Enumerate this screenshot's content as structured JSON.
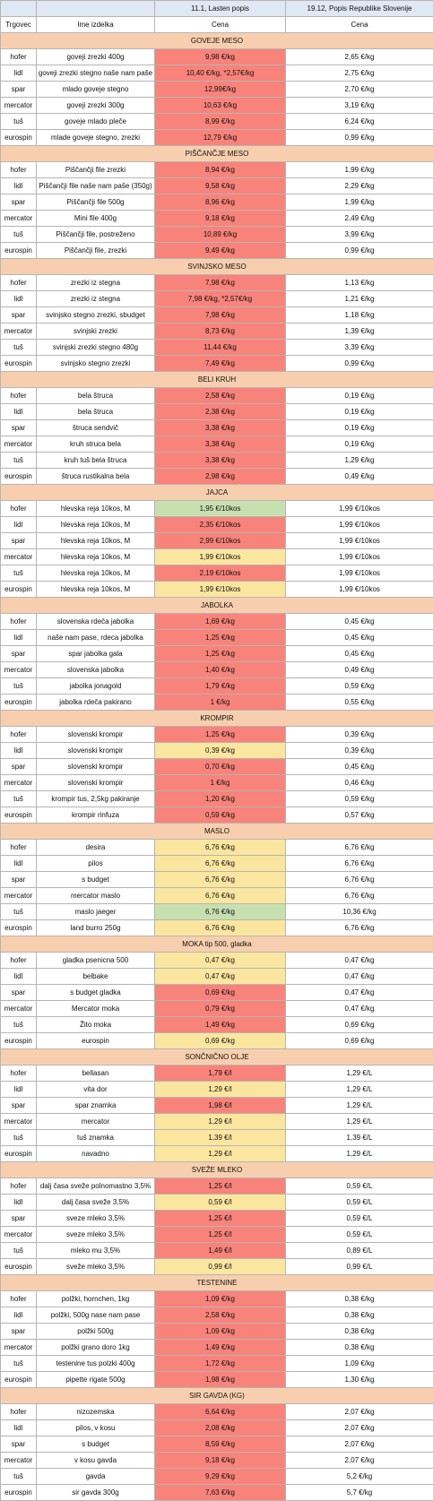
{
  "header": {
    "col3_title": "11.1, Lasten popis",
    "col4_title": "19.12, Popis Republike Slovenije",
    "col1_label": "Trgovec",
    "col2_label": "Ime izdelka",
    "col3_label": "Cena",
    "col4_label": "Cena"
  },
  "colors": {
    "red": "#f8837a",
    "yellow": "#fbe6a0",
    "green": "#c7e0b0",
    "section": "#f8cfae",
    "header": "#dfe8f3"
  },
  "sections": [
    {
      "title": "GOVEJE MESO",
      "rows": [
        {
          "store": "hofer",
          "product": "goveji zrezki 400g",
          "price_jan": "9,98 €/kg",
          "price_dec": "2,65 €/kg",
          "color": "red"
        },
        {
          "store": "lidl",
          "product": "goveji zrezki stegno naše nam paše",
          "price_jan": "10,40 €/kg, *2,57€/kg",
          "price_dec": "2,75 €/kg",
          "color": "red"
        },
        {
          "store": "spar",
          "product": "mlado goveje stegno",
          "price_jan": "12,99€/kg",
          "price_dec": "2,70 €/kg",
          "color": "red"
        },
        {
          "store": "mercator",
          "product": "goveji zrezki 300g",
          "price_jan": "10,63 €/kg",
          "price_dec": "3,19 €/kg",
          "color": "red"
        },
        {
          "store": "tuš",
          "product": "goveje mlado pleče",
          "price_jan": "8,99 €/kg",
          "price_dec": "6,24 €/kg",
          "color": "red"
        },
        {
          "store": "eurospin",
          "product": "mlade goveje stegno, zrezki",
          "price_jan": "12,79 €/kg",
          "price_dec": "0,99 €/kg",
          "color": "red"
        }
      ]
    },
    {
      "title": "PIŠČANČJE MESO",
      "rows": [
        {
          "store": "hofer",
          "product": "Piščančji file zrezki",
          "price_jan": "8,94 €/kg",
          "price_dec": "1,99 €/kg",
          "color": "red"
        },
        {
          "store": "lidl",
          "product": "Piščančji file naše nam paše (350g)",
          "price_jan": "9,58 €/kg",
          "price_dec": "2,29 €/kg",
          "color": "red"
        },
        {
          "store": "spar",
          "product": "Piščančji file 500g",
          "price_jan": "8,96 €/kg",
          "price_dec": "1,99 €/kg",
          "color": "red"
        },
        {
          "store": "mercator",
          "product": "Mini file 400g",
          "price_jan": "9,18 €/kg",
          "price_dec": "2,49 €/kg",
          "color": "red"
        },
        {
          "store": "tuš",
          "product": "Piščančji file, postreženo",
          "price_jan": "10,89 €/kg",
          "price_dec": "3,99 €/kg",
          "color": "red"
        },
        {
          "store": "eurospin",
          "product": "Piščančji file, zrezki",
          "price_jan": "9,49 €/kg",
          "price_dec": "0,99 €/kg",
          "color": "red"
        }
      ]
    },
    {
      "title": "SVINJSKO MESO",
      "rows": [
        {
          "store": "hofer",
          "product": "zrezki iz stegna",
          "price_jan": "7,98 €/kg",
          "price_dec": "1,13 €/kg",
          "color": "red"
        },
        {
          "store": "lidl",
          "product": "zrezki iz stegna",
          "price_jan": "7,98 €/kg, *2,57€/kg",
          "price_dec": "1,21 €/kg",
          "color": "red"
        },
        {
          "store": "spar",
          "product": "svinjsko stegno zrezki, sbudget",
          "price_jan": "7,98 €/kg",
          "price_dec": "1,18 €/kg",
          "color": "red"
        },
        {
          "store": "mercator",
          "product": "svinjski zrezki",
          "price_jan": "8,73 €/kg",
          "price_dec": "1,39 €/kg",
          "color": "red"
        },
        {
          "store": "tuš",
          "product": "svinjski zrezki stegno 480g",
          "price_jan": "11,44 €/kg",
          "price_dec": "3,39 €/kg",
          "color": "red"
        },
        {
          "store": "eurospin",
          "product": "svinjsko stegno zrezki",
          "price_jan": "7,49 €/kg",
          "price_dec": "0,99 €/kg",
          "color": "red"
        }
      ]
    },
    {
      "title": "BELI KRUH",
      "rows": [
        {
          "store": "hofer",
          "product": "bela štruca",
          "price_jan": "2,58 €/kg",
          "price_dec": "0,19 €/kg",
          "color": "red"
        },
        {
          "store": "lidl",
          "product": "bela štruca",
          "price_jan": "2,38 €/kg",
          "price_dec": "0,19 €/kg",
          "color": "red"
        },
        {
          "store": "spar",
          "product": "štruca sendvič",
          "price_jan": "3,38 €/kg",
          "price_dec": "0,19 €/kg",
          "color": "red"
        },
        {
          "store": "mercator",
          "product": "kruh struca bela",
          "price_jan": "3,38 €/kg",
          "price_dec": "0,19 €/kg",
          "color": "red"
        },
        {
          "store": "tuš",
          "product": "kruh tuš bela štruca",
          "price_jan": "3,38 €/kg",
          "price_dec": "1,29 €/kg",
          "color": "red"
        },
        {
          "store": "eurospin",
          "product": "štruca rustikalna bela",
          "price_jan": "2,98 €/kg",
          "price_dec": "0,49 €/kg",
          "color": "red"
        }
      ]
    },
    {
      "title": "JAJCA",
      "rows": [
        {
          "store": "hofer",
          "product": "hlevska reja 10kos, M",
          "price_jan": "1,95 €/10kos",
          "price_dec": "1,99 €/10kos",
          "color": "green"
        },
        {
          "store": "lidl",
          "product": "hlevska reja 10kos, M",
          "price_jan": "2,35 €/10kos",
          "price_dec": "1,99 €/10kos",
          "color": "red"
        },
        {
          "store": "spar",
          "product": "hlevska reja 10kos, M",
          "price_jan": "2,99 €/10kos",
          "price_dec": "1,99 €/10kos",
          "color": "red"
        },
        {
          "store": "mercator",
          "product": "hlevska reja 10kos, M",
          "price_jan": "1,99 €/10kos",
          "price_dec": "1,99 €/10kos",
          "color": "yellow"
        },
        {
          "store": "tuš",
          "product": "hlevska reja 10kos, M",
          "price_jan": "2,19 €/10kos",
          "price_dec": "1,99 €/10kos",
          "color": "red"
        },
        {
          "store": "eurospin",
          "product": "hlevska reja 10kos, M",
          "price_jan": "1,99 €/10kos",
          "price_dec": "1,99 €/10kos",
          "color": "yellow"
        }
      ]
    },
    {
      "title": "JABOLKA",
      "rows": [
        {
          "store": "hofer",
          "product": "slovenska rdeča jabolka",
          "price_jan": "1,69 €/kg",
          "price_dec": "0,45 €/kg",
          "color": "red"
        },
        {
          "store": "lidl",
          "product": "naše nam pase, rdeca jabolka",
          "price_jan": "1,25 €/kg",
          "price_dec": "0,45 €/kg",
          "color": "red"
        },
        {
          "store": "spar",
          "product": "spar jabolka gala",
          "price_jan": "1,25 €/kg",
          "price_dec": "0,45 €/kg",
          "color": "red"
        },
        {
          "store": "mercator",
          "product": "slovenska jabolka",
          "price_jan": "1,40 €/kg",
          "price_dec": "0,49 €/kg",
          "color": "red"
        },
        {
          "store": "tuš",
          "product": "jabolka jonagold",
          "price_jan": "1,79 €/kg",
          "price_dec": "0,59 €/kg",
          "color": "red"
        },
        {
          "store": "eurospin",
          "product": "jabolka rdeča pakirano",
          "price_jan": "1 €/kg",
          "price_dec": "0,55 €/kg",
          "color": "red"
        }
      ]
    },
    {
      "title": "KROMPIR",
      "rows": [
        {
          "store": "hofer",
          "product": "slovenski krompir",
          "price_jan": "1,25 €/kg",
          "price_dec": "0,39 €/kg",
          "color": "red"
        },
        {
          "store": "lidl",
          "product": "slovenski krompir",
          "price_jan": "0,39 €/kg",
          "price_dec": "0,39 €/kg",
          "color": "yellow"
        },
        {
          "store": "spar",
          "product": "slovenski krompir",
          "price_jan": "0,70 €/kg",
          "price_dec": "0,45 €/kg",
          "color": "red"
        },
        {
          "store": "mercator",
          "product": "slovenski krompir",
          "price_jan": "1 €/kg",
          "price_dec": "0,46 €/kg",
          "color": "red"
        },
        {
          "store": "tuš",
          "product": "krompir tus, 2,5kg pakiranje",
          "price_jan": "1,20 €/kg",
          "price_dec": "0,59 €/kg",
          "color": "red"
        },
        {
          "store": "eurospin",
          "product": "krompir rinfuza",
          "price_jan": "0,59 €/kg",
          "price_dec": "0,57 €/kg",
          "color": "red"
        }
      ]
    },
    {
      "title": "MASLO",
      "rows": [
        {
          "store": "hofer",
          "product": "desira",
          "price_jan": "6,76 €/kg",
          "price_dec": "6,76 €/kg",
          "color": "yellow"
        },
        {
          "store": "lidl",
          "product": "pilos",
          "price_jan": "6,76 €/kg",
          "price_dec": "6,76 €/kg",
          "color": "yellow"
        },
        {
          "store": "spar",
          "product": "s budget",
          "price_jan": "6,76 €/kg",
          "price_dec": "6,76 €/kg",
          "color": "yellow"
        },
        {
          "store": "mercator",
          "product": "mercator maslo",
          "price_jan": "6,76 €/kg",
          "price_dec": "6,76 €/kg",
          "color": "yellow"
        },
        {
          "store": "tuš",
          "product": "maslo jaeger",
          "price_jan": "6,76 €/kg",
          "price_dec": "10,36 €/kg",
          "color": "green"
        },
        {
          "store": "eurospin",
          "product": "land burro 250g",
          "price_jan": "6,76 €/kg",
          "price_dec": "6,76 €/kg",
          "color": "yellow"
        }
      ]
    },
    {
      "title": "MOKA tip 500, gladka",
      "rows": [
        {
          "store": "hofer",
          "product": "gladka psenicna 500",
          "price_jan": "0,47 €/kg",
          "price_dec": "0,47 €/kg",
          "color": "yellow"
        },
        {
          "store": "lidl",
          "product": "belbake",
          "price_jan": "0,47 €/kg",
          "price_dec": "0,47 €/kg",
          "color": "yellow"
        },
        {
          "store": "spar",
          "product": "s budget gladka",
          "price_jan": "0,69 €/kg",
          "price_dec": "0,47 €/kg",
          "color": "red"
        },
        {
          "store": "mercator",
          "product": "Mercator moka",
          "price_jan": "0,79 €/kg",
          "price_dec": "0,47 €/kg",
          "color": "red"
        },
        {
          "store": "tuš",
          "product": "Žito moka",
          "price_jan": "1,49 €/kg",
          "price_dec": "0,69 €/kg",
          "color": "red"
        },
        {
          "store": "eurospin",
          "product": "eurospin",
          "price_jan": "0,69 €/kg",
          "price_dec": "0,69 €/kg",
          "color": "yellow"
        }
      ]
    },
    {
      "title": "SONČNIČNO OLJE",
      "rows": [
        {
          "store": "hofer",
          "product": "bellasan",
          "price_jan": "1,79 €/l",
          "price_dec": "1,29 €/L",
          "color": "red"
        },
        {
          "store": "lidl",
          "product": "vita dor",
          "price_jan": "1,29 €/l",
          "price_dec": "1,29 €/L",
          "color": "yellow"
        },
        {
          "store": "spar",
          "product": "spar znamka",
          "price_jan": "1,98 €/l",
          "price_dec": "1,29 €/L",
          "color": "red"
        },
        {
          "store": "mercator",
          "product": "mercator",
          "price_jan": "1,29 €/l",
          "price_dec": "1,29 €/L",
          "color": "yellow"
        },
        {
          "store": "tuš",
          "product": "tuš znamka",
          "price_jan": "1,39 €/l",
          "price_dec": "1,39 €/L",
          "color": "yellow"
        },
        {
          "store": "eurospin",
          "product": "navadno",
          "price_jan": "1,29 €/l",
          "price_dec": "1,29 €/L",
          "color": "yellow"
        }
      ]
    },
    {
      "title": "SVEŽE MLEKO",
      "rows": [
        {
          "store": "hofer",
          "product": "dalj časa sveže polnomastno 3,5%",
          "price_jan": "1,25 €/l",
          "price_dec": "0,59 €/L",
          "color": "red"
        },
        {
          "store": "lidl",
          "product": "dalj časa sveže 3,5%",
          "price_jan": "0,59 €/l",
          "price_dec": "0,59 €/L",
          "color": "yellow"
        },
        {
          "store": "spar",
          "product": "sveze mleko 3,5%",
          "price_jan": "1,25 €/l",
          "price_dec": "0,59 €/L",
          "color": "red"
        },
        {
          "store": "mercator",
          "product": "sveze mleko 3,5%",
          "price_jan": "1,25 €/l",
          "price_dec": "0,59 €/L",
          "color": "red"
        },
        {
          "store": "tuš",
          "product": "mleko mu 3,5%",
          "price_jan": "1,49 €/l",
          "price_dec": "0,89 €/L",
          "color": "red"
        },
        {
          "store": "eurospin",
          "product": "sveže mleko 3,5%",
          "price_jan": "0,99 €/l",
          "price_dec": "0,99 €/L",
          "color": "yellow"
        }
      ]
    },
    {
      "title": "TESTENINE",
      "rows": [
        {
          "store": "hofer",
          "product": "polžki, hornchen, 1kg",
          "price_jan": "1,09 €/kg",
          "price_dec": "0,38 €/kg",
          "color": "red"
        },
        {
          "store": "lidl",
          "product": "polžki, 500g nase nam pase",
          "price_jan": "2,58 €/kg",
          "price_dec": "0,38 €/kg",
          "color": "red"
        },
        {
          "store": "spar",
          "product": "polžki 500g",
          "price_jan": "1,09 €/kg",
          "price_dec": "0,38 €/kg",
          "color": "red"
        },
        {
          "store": "mercator",
          "product": "polžki grano doro 1kg",
          "price_jan": "1,49 €/kg",
          "price_dec": "0,38 €/kg",
          "color": "red"
        },
        {
          "store": "tuš",
          "product": "testenine tus polzki 400g",
          "price_jan": "1,72 €/kg",
          "price_dec": "1,09 €/kg",
          "color": "red"
        },
        {
          "store": "eurospin",
          "product": "pipette rigate 500g",
          "price_jan": "1,98 €/kg",
          "price_dec": "1,30 €/kg",
          "color": "red"
        }
      ]
    },
    {
      "title": "SIR GAVDA (KG)",
      "rows": [
        {
          "store": "hofer",
          "product": "nizozemska",
          "price_jan": "6,64 €/kg",
          "price_dec": "2,07 €/kg",
          "color": "red"
        },
        {
          "store": "lidl",
          "product": "pilos, v kosu",
          "price_jan": "2,08 €/kg",
          "price_dec": "2,07 €/kg",
          "color": "red"
        },
        {
          "store": "spar",
          "product": "s budget",
          "price_jan": "8,59 €/kg",
          "price_dec": "2,07 €/kg",
          "color": "red"
        },
        {
          "store": "mercator",
          "product": "v kosu gavda",
          "price_jan": "9,18 €/kg",
          "price_dec": "2,07 €/kg",
          "color": "red"
        },
        {
          "store": "tuš",
          "product": "gavda",
          "price_jan": "9,29 €/kg",
          "price_dec": "5,2 €/kg",
          "color": "red"
        },
        {
          "store": "eurospin",
          "product": "sir gavda 300g",
          "price_jan": "7,63 €/kg",
          "price_dec": "5,7 €/kg",
          "color": "red"
        }
      ]
    }
  ]
}
